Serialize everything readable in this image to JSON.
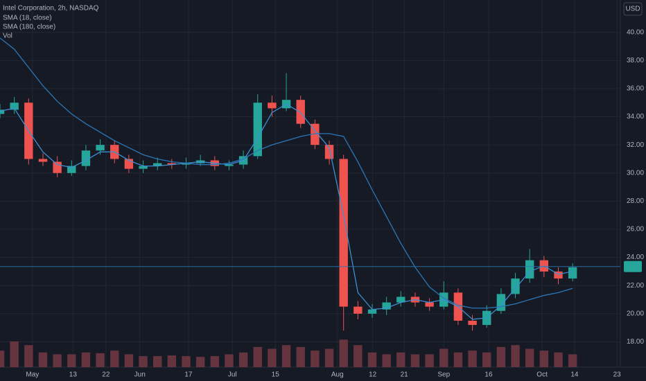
{
  "chart_data": {
    "type": "candlestick",
    "title": "Intel Corporation, 2h, NASDAQ",
    "volume_label": "Vol",
    "currency": "USD",
    "up_color": "#26a69a",
    "down_color": "#ef5350",
    "x": [
      0,
      3,
      6,
      9,
      12,
      15,
      18,
      21,
      24,
      27,
      30,
      33,
      36,
      39,
      42,
      45,
      48,
      51,
      54,
      57,
      60,
      63,
      66,
      69,
      72,
      75,
      78,
      81,
      84,
      87,
      90,
      93,
      96,
      99,
      102,
      105,
      108,
      111,
      114,
      117,
      120
    ],
    "open": [
      34.2,
      34.5,
      35.0,
      31.0,
      30.8,
      30.0,
      30.5,
      31.6,
      32.0,
      31.0,
      30.3,
      30.5,
      30.7,
      30.6,
      30.7,
      30.9,
      30.5,
      30.6,
      31.2,
      35.0,
      34.6,
      35.2,
      33.5,
      32.0,
      31.0,
      20.5,
      20.0,
      20.3,
      20.8,
      21.2,
      20.8,
      20.5,
      21.5,
      19.5,
      19.2,
      20.2,
      21.4,
      22.5,
      23.8,
      23.0,
      22.5
    ],
    "high": [
      34.9,
      35.4,
      35.3,
      31.4,
      31.2,
      30.9,
      32.0,
      32.4,
      32.3,
      31.3,
      30.9,
      31.1,
      31.0,
      31.1,
      31.3,
      31.2,
      30.9,
      31.6,
      35.6,
      35.5,
      37.1,
      35.5,
      33.8,
      32.3,
      31.3,
      20.9,
      20.7,
      21.2,
      21.6,
      21.5,
      21.1,
      22.3,
      21.8,
      19.9,
      20.6,
      21.8,
      22.9,
      24.6,
      24.1,
      23.3,
      23.6
    ],
    "low": [
      33.9,
      34.2,
      30.6,
      30.5,
      29.7,
      29.8,
      30.2,
      31.3,
      30.7,
      30.0,
      30.0,
      30.2,
      30.3,
      30.3,
      30.5,
      30.2,
      30.2,
      30.3,
      31.0,
      34.0,
      34.4,
      33.2,
      31.7,
      30.6,
      18.8,
      19.6,
      19.7,
      19.9,
      20.5,
      20.5,
      20.2,
      20.3,
      19.2,
      18.8,
      19.0,
      20.0,
      21.1,
      22.2,
      22.6,
      22.1,
      22.3
    ],
    "close": [
      34.5,
      35.0,
      31.0,
      30.8,
      30.0,
      30.5,
      31.6,
      32.0,
      31.0,
      30.3,
      30.5,
      30.7,
      30.6,
      30.7,
      30.9,
      30.5,
      30.6,
      31.2,
      35.0,
      34.6,
      35.2,
      33.5,
      32.0,
      31.0,
      20.5,
      20.0,
      20.3,
      20.8,
      21.2,
      20.8,
      20.5,
      21.5,
      19.5,
      19.2,
      20.2,
      21.4,
      22.5,
      23.8,
      23.0,
      22.5,
      23.3
    ],
    "volume": [
      45,
      70,
      60,
      40,
      35,
      35,
      40,
      38,
      45,
      35,
      30,
      30,
      32,
      30,
      28,
      30,
      35,
      40,
      55,
      50,
      60,
      55,
      45,
      50,
      75,
      60,
      40,
      35,
      40,
      35,
      35,
      50,
      40,
      45,
      40,
      55,
      60,
      50,
      45,
      40,
      35
    ],
    "volume_color": "#7a3b45",
    "series": [
      {
        "name": "SMA (18, close)",
        "color": "#3d8fd1",
        "values": [
          34.4,
          34.6,
          33.0,
          31.5,
          30.6,
          30.4,
          30.9,
          31.5,
          31.5,
          30.9,
          30.5,
          30.5,
          30.6,
          30.7,
          30.8,
          30.7,
          30.6,
          30.9,
          32.5,
          34.3,
          34.9,
          34.3,
          33.0,
          31.8,
          27.0,
          21.5,
          20.3,
          20.4,
          20.8,
          21.0,
          20.8,
          21.0,
          20.5,
          19.6,
          19.7,
          20.6,
          21.8,
          23.0,
          23.4,
          22.8,
          23.0
        ]
      },
      {
        "name": "SMA (180, close)",
        "color": "#2b78b8",
        "values": [
          39.6,
          38.8,
          37.5,
          36.2,
          35.1,
          34.2,
          33.5,
          32.9,
          32.3,
          31.8,
          31.3,
          31.0,
          30.8,
          30.7,
          30.6,
          30.6,
          30.7,
          31.0,
          31.6,
          32.0,
          32.3,
          32.6,
          32.8,
          32.8,
          32.6,
          30.8,
          28.8,
          26.9,
          25.0,
          23.3,
          21.9,
          21.1,
          20.6,
          20.4,
          20.4,
          20.5,
          20.7,
          21.0,
          21.3,
          21.5,
          21.8
        ]
      }
    ],
    "last_price": 23.35,
    "xlim": [
      0,
      130
    ],
    "ylim": [
      16.2,
      42.3
    ],
    "y2lim": [
      0,
      1000
    ],
    "xticks": [
      {
        "value": 6.8,
        "label": "May"
      },
      {
        "value": 15.3,
        "label": "13"
      },
      {
        "value": 22.2,
        "label": "22"
      },
      {
        "value": 29.3,
        "label": "Jun"
      },
      {
        "value": 39.5,
        "label": "17"
      },
      {
        "value": 48.7,
        "label": "Jul"
      },
      {
        "value": 57.7,
        "label": "15"
      },
      {
        "value": 70.7,
        "label": "Aug"
      },
      {
        "value": 78.1,
        "label": "12"
      },
      {
        "value": 84.7,
        "label": "21"
      },
      {
        "value": 93,
        "label": "Sep"
      },
      {
        "value": 102.4,
        "label": "16"
      },
      {
        "value": 113.6,
        "label": "Oct"
      },
      {
        "value": 120.4,
        "label": "14"
      },
      {
        "value": 129.3,
        "label": "23"
      }
    ],
    "yticks": [
      {
        "value": 18,
        "label": "18.00"
      },
      {
        "value": 20,
        "label": "20.00"
      },
      {
        "value": 22,
        "label": "22.00"
      },
      {
        "value": 24,
        "label": "24.00"
      },
      {
        "value": 26,
        "label": "26.00"
      },
      {
        "value": 28,
        "label": "28.00"
      },
      {
        "value": 30,
        "label": "30.00"
      },
      {
        "value": 32,
        "label": "32.00"
      },
      {
        "value": 34,
        "label": "34.00"
      },
      {
        "value": 36,
        "label": "36.00"
      },
      {
        "value": 38,
        "label": "38.00"
      },
      {
        "value": 40,
        "label": "40.00"
      }
    ],
    "grid": true
  }
}
